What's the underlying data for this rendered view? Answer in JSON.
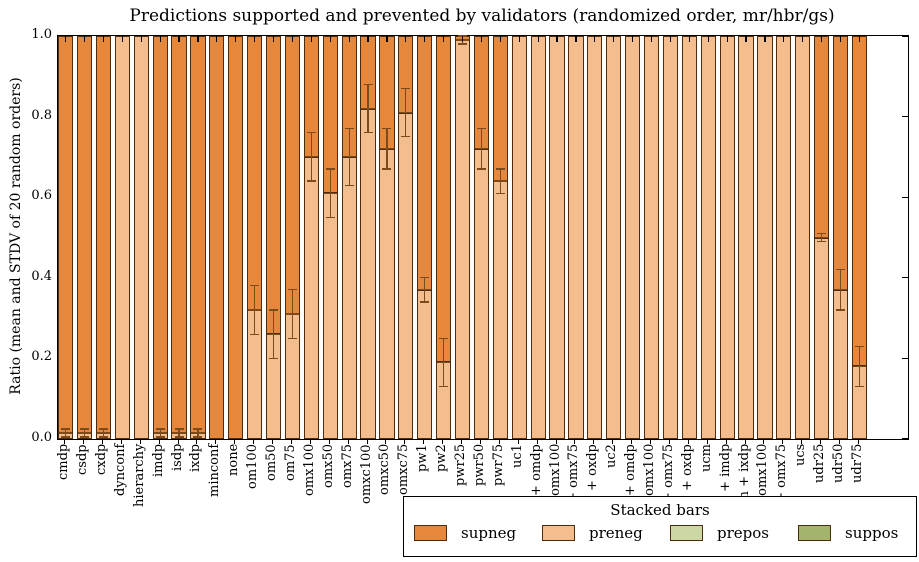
{
  "chart_data": {
    "type": "bar",
    "stacked": true,
    "title": "Predictions supported and prevented by validators (randomized order, mr/hbr/gs)",
    "ylabel": "Ratio (mean and STDV of 20 random orders)",
    "xlabel": "",
    "ylim": [
      0.0,
      1.0
    ],
    "yticks": [
      "0.0",
      "0.2",
      "0.4",
      "0.6",
      "0.8",
      "1.0"
    ],
    "grid": false,
    "legend": {
      "title": "Stacked bars",
      "position": "lower right",
      "entries": [
        {
          "label": "supneg",
          "color": "#e6883c"
        },
        {
          "label": "preneg",
          "color": "#f3bd8d"
        },
        {
          "label": "prepos",
          "color": "#ccd8a4"
        },
        {
          "label": "suppos",
          "color": "#a3b56d"
        }
      ]
    },
    "categories": [
      "cmdp",
      "csdp",
      "cxdp",
      "dynconf",
      "hierarchy",
      "imdp",
      "isdp",
      "ixdp",
      "minconf",
      "none",
      "om100",
      "om50",
      "om75",
      "omx100",
      "omx50",
      "omx75",
      "omxc100",
      "omxc50",
      "omxc75",
      "pw1",
      "pw2",
      "pwr25",
      "pwr50",
      "pwr75",
      "uc1",
      "uc1 + omdp",
      "uc1 + omx100",
      "uc1 + omx75",
      "uc1 + oxdp",
      "uc2",
      "uc2 + omdp",
      "uc2 + omx100",
      "uc2 + omx75",
      "uc2 + oxdp",
      "ucm",
      "ucm + imdp",
      "ucm + ixdp",
      "ucm + omx100",
      "ucm + omx75",
      "ucs",
      "udr25",
      "udr50",
      "udr75"
    ],
    "series": [
      {
        "name": "preneg",
        "color": "#f3bd8d",
        "values": [
          0.015,
          0.015,
          0.015,
          1.0,
          1.0,
          0.015,
          0.015,
          0.015,
          0.0,
          0.0,
          0.32,
          0.26,
          0.31,
          0.7,
          0.61,
          0.7,
          0.82,
          0.72,
          0.81,
          0.37,
          0.19,
          0.99,
          0.72,
          0.64,
          1.0,
          1.0,
          1.0,
          1.0,
          1.0,
          1.0,
          1.0,
          1.0,
          1.0,
          1.0,
          1.0,
          1.0,
          1.0,
          1.0,
          1.0,
          1.0,
          0.5,
          0.37,
          0.18
        ]
      },
      {
        "name": "supneg",
        "color": "#e6883c",
        "values": [
          0.985,
          0.985,
          0.985,
          0.0,
          0.0,
          0.985,
          0.985,
          0.985,
          1.0,
          1.0,
          0.68,
          0.74,
          0.69,
          0.3,
          0.39,
          0.3,
          0.18,
          0.28,
          0.19,
          0.63,
          0.81,
          0.01,
          0.28,
          0.36,
          0.0,
          0.0,
          0.0,
          0.0,
          0.0,
          0.0,
          0.0,
          0.0,
          0.0,
          0.0,
          0.0,
          0.0,
          0.0,
          0.0,
          0.0,
          0.0,
          0.5,
          0.63,
          0.82
        ]
      },
      {
        "name": "prepos",
        "color": "#ccd8a4",
        "values": [
          0,
          0,
          0,
          0,
          0,
          0,
          0,
          0,
          0,
          0,
          0,
          0,
          0,
          0,
          0,
          0,
          0,
          0,
          0,
          0,
          0,
          0,
          0,
          0,
          0,
          0,
          0,
          0,
          0,
          0,
          0,
          0,
          0,
          0,
          0,
          0,
          0,
          0,
          0,
          0,
          0,
          0,
          0
        ]
      },
      {
        "name": "suppos",
        "color": "#a3b56d",
        "values": [
          0,
          0,
          0,
          0,
          0,
          0,
          0,
          0,
          0,
          0,
          0,
          0,
          0,
          0,
          0,
          0,
          0,
          0,
          0,
          0,
          0,
          0,
          0,
          0,
          0,
          0,
          0,
          0,
          0,
          0,
          0,
          0,
          0,
          0,
          0,
          0,
          0,
          0,
          0,
          0,
          0,
          0,
          0
        ]
      }
    ],
    "boundary_std": [
      0.01,
      0.01,
      0.01,
      0.0,
      0.0,
      0.01,
      0.01,
      0.01,
      0.0,
      0.0,
      0.06,
      0.06,
      0.06,
      0.06,
      0.06,
      0.07,
      0.06,
      0.05,
      0.06,
      0.03,
      0.06,
      0.01,
      0.05,
      0.03,
      0,
      0,
      0,
      0,
      0,
      0,
      0,
      0,
      0,
      0,
      0,
      0,
      0,
      0,
      0,
      0,
      0.01,
      0.05,
      0.05
    ],
    "colors": {
      "bar_edge": "#4f2c0d",
      "error_bar": "#7d4a1c",
      "axis": "#000000",
      "background": "#ffffff"
    }
  }
}
